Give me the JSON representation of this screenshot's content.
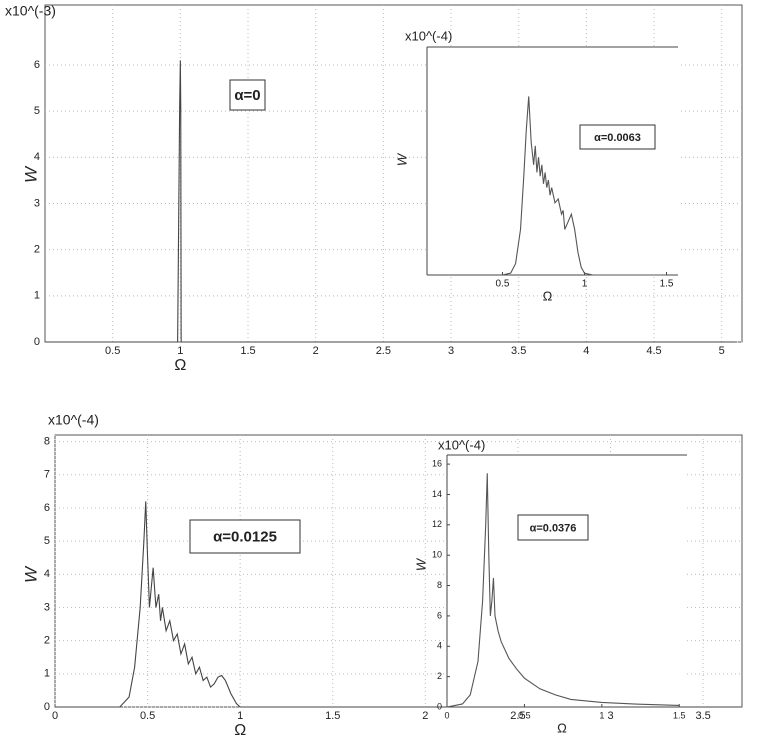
{
  "chart_data": [
    {
      "type": "line",
      "y_scale_label": "x10^(-3)",
      "x_label": "Ω",
      "y_label": "W",
      "annotation": "α=0",
      "grid": true,
      "xlim": [
        0,
        5.15
      ],
      "ylim": [
        0,
        7.3
      ],
      "xticks": [
        0.5,
        1,
        1.5,
        2,
        2.5,
        3,
        3.5,
        4,
        4.5,
        5
      ],
      "yticks": [
        0,
        1,
        2,
        3,
        4,
        5,
        6
      ],
      "series": [
        {
          "color": "#444444",
          "x": [
            0,
            0.98,
            0.995,
            1.0,
            1.003,
            1.006,
            1.02,
            5.1
          ],
          "values": [
            0,
            0,
            5.1,
            6.1,
            5.1,
            0,
            0,
            0
          ]
        }
      ]
    },
    {
      "type": "line",
      "y_scale_label": "x10^(-4)",
      "x_label": "Ω",
      "y_label": "W",
      "annotation": "α=0.0063",
      "grid": false,
      "xlim": [
        0.04,
        1.57
      ],
      "ylim": [
        0,
        6
      ],
      "xticks": [
        0.5,
        1,
        1.5
      ],
      "series": [
        {
          "color": "#555555",
          "x": [
            0.5,
            0.55,
            0.58,
            0.61,
            0.63,
            0.645,
            0.66,
            0.675,
            0.69,
            0.7,
            0.71,
            0.72,
            0.73,
            0.74,
            0.75,
            0.76,
            0.77,
            0.78,
            0.79,
            0.8,
            0.82,
            0.84,
            0.86,
            0.87,
            0.88,
            0.9,
            0.92,
            0.94,
            0.96,
            0.98,
            1.0,
            1.05,
            1.5
          ],
          "values": [
            0,
            0.05,
            0.3,
            1.2,
            2.6,
            3.8,
            4.7,
            3.5,
            2.9,
            3.4,
            2.7,
            3.1,
            2.6,
            2.9,
            2.4,
            2.7,
            2.3,
            2.5,
            2.1,
            2.3,
            1.9,
            2.0,
            1.6,
            1.7,
            1.2,
            1.4,
            1.6,
            1.2,
            0.6,
            0.2,
            0.05,
            0,
            0
          ]
        }
      ]
    },
    {
      "type": "line",
      "y_scale_label": "x10^(-4)",
      "x_label": "Ω",
      "y_label": "W",
      "annotation": "α=0.0125",
      "grid": true,
      "xlim": [
        0,
        3.71
      ],
      "ylim": [
        0,
        8.2
      ],
      "xticks": [
        0,
        0.5,
        1,
        1.5,
        2,
        2.5,
        3,
        3.5
      ],
      "yticks": [
        0,
        1,
        2,
        3,
        4,
        5,
        6,
        7,
        8
      ],
      "series": [
        {
          "color": "#444444",
          "x": [
            0,
            0.35,
            0.4,
            0.43,
            0.46,
            0.48,
            0.49,
            0.5,
            0.51,
            0.52,
            0.53,
            0.545,
            0.56,
            0.57,
            0.58,
            0.6,
            0.62,
            0.64,
            0.66,
            0.68,
            0.7,
            0.72,
            0.74,
            0.76,
            0.78,
            0.8,
            0.82,
            0.84,
            0.86,
            0.88,
            0.9,
            0.92,
            0.95,
            0.98,
            1.0,
            1.1,
            3.7
          ],
          "values": [
            0,
            0,
            0.3,
            1.2,
            3.0,
            5.0,
            6.2,
            4.5,
            3.0,
            3.6,
            4.2,
            3.0,
            3.4,
            2.6,
            3.0,
            2.3,
            2.6,
            2.0,
            2.2,
            1.6,
            1.9,
            1.3,
            1.5,
            1.0,
            1.2,
            0.8,
            0.9,
            0.6,
            0.7,
            0.9,
            0.95,
            0.8,
            0.4,
            0.1,
            0,
            0,
            0
          ]
        }
      ]
    },
    {
      "type": "line",
      "y_scale_label": "x10^(-4)",
      "x_label": "Ω",
      "y_label": "W",
      "annotation": "α=0.0376",
      "grid": false,
      "xlim": [
        0,
        1.55
      ],
      "ylim": [
        0,
        16.6
      ],
      "xticks": [
        0,
        0.5,
        1,
        1.5
      ],
      "yticks": [
        0,
        2,
        4,
        6,
        8,
        10,
        12,
        14,
        16
      ],
      "series": [
        {
          "color": "#555555",
          "x": [
            0,
            0.1,
            0.15,
            0.2,
            0.23,
            0.25,
            0.26,
            0.27,
            0.28,
            0.29,
            0.3,
            0.31,
            0.33,
            0.35,
            0.4,
            0.45,
            0.5,
            0.6,
            0.7,
            0.8,
            1.0,
            1.2,
            1.5
          ],
          "values": [
            0,
            0.2,
            0.8,
            3,
            7,
            12,
            15.4,
            10,
            6,
            7,
            8.5,
            6,
            5,
            4.3,
            3.2,
            2.5,
            1.9,
            1.2,
            0.8,
            0.5,
            0.3,
            0.2,
            0.1
          ]
        }
      ]
    }
  ]
}
